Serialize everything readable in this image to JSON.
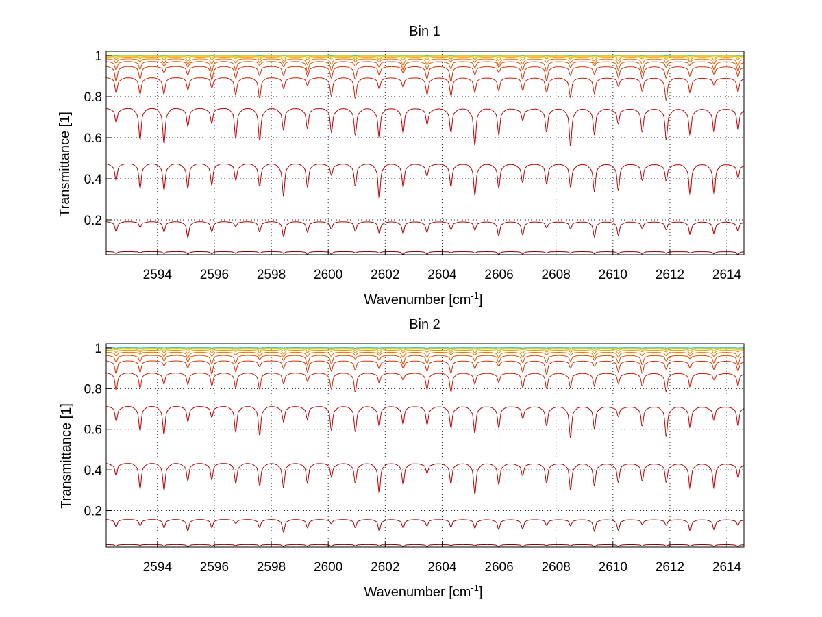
{
  "chart_data": [
    {
      "type": "line",
      "title": "Bin 1",
      "xlabel": "Wavenumber [cm",
      "xlabel_sup": "-1",
      "xlabel_end": "]",
      "ylabel": "Transmittance [1]",
      "xlim": [
        2592.2,
        2614.6
      ],
      "ylim": [
        0.03,
        1.02
      ],
      "xticks": [
        2594,
        2596,
        2598,
        2600,
        2602,
        2604,
        2606,
        2608,
        2610,
        2612,
        2614
      ],
      "xtick_labels": [
        "2594",
        "2596",
        "2598",
        "2600",
        "2602",
        "2604",
        "2606",
        "2608",
        "2610",
        "2612",
        "2614"
      ],
      "yticks": [
        0.2,
        0.4,
        0.6,
        0.8,
        1
      ],
      "ytick_labels": [
        "0.2",
        "0.4",
        "0.6",
        "0.8",
        "1"
      ],
      "grid": true,
      "line_period": 0.84,
      "series": [
        {
          "baseline": 0.045,
          "dip": 0.01,
          "color": "#8b0000"
        },
        {
          "baseline": 0.19,
          "dip": 0.05,
          "color": "#a80000"
        },
        {
          "baseline": 0.47,
          "dip": 0.11,
          "color": "#b80000"
        },
        {
          "baseline": 0.74,
          "dip": 0.12,
          "color": "#c00000"
        },
        {
          "baseline": 0.89,
          "dip": 0.07,
          "color": "#cc1a00"
        },
        {
          "baseline": 0.945,
          "dip": 0.05,
          "color": "#d83000"
        },
        {
          "baseline": 0.97,
          "dip": 0.035,
          "color": "#e05000"
        },
        {
          "baseline": 0.983,
          "dip": 0.022,
          "color": "#e87000"
        },
        {
          "baseline": 0.991,
          "dip": 0.012,
          "color": "#f09000"
        },
        {
          "baseline": 0.996,
          "dip": 0.007,
          "color": "#f5b800"
        },
        {
          "baseline": 0.999,
          "dip": 0.004,
          "color": "#e8e000"
        },
        {
          "baseline": 1.001,
          "dip": 0.002,
          "color": "#22c0d0"
        }
      ]
    },
    {
      "type": "line",
      "title": "Bin 2",
      "xlabel": "Wavenumber [cm",
      "xlabel_sup": "-1",
      "xlabel_end": "]",
      "ylabel": "Transmittance [1]",
      "xlim": [
        2592.2,
        2614.6
      ],
      "ylim": [
        0.02,
        1.02
      ],
      "xticks": [
        2594,
        2596,
        2598,
        2600,
        2602,
        2604,
        2606,
        2608,
        2610,
        2612,
        2614
      ],
      "xtick_labels": [
        "2594",
        "2596",
        "2598",
        "2600",
        "2602",
        "2604",
        "2606",
        "2608",
        "2610",
        "2612",
        "2614"
      ],
      "yticks": [
        0.2,
        0.4,
        0.6,
        0.8,
        1
      ],
      "ytick_labels": [
        "0.2",
        "0.4",
        "0.6",
        "0.8",
        "1"
      ],
      "grid": true,
      "line_period": 0.84,
      "series": [
        {
          "baseline": 0.032,
          "dip": 0.008,
          "color": "#8b0000"
        },
        {
          "baseline": 0.155,
          "dip": 0.04,
          "color": "#a80000"
        },
        {
          "baseline": 0.43,
          "dip": 0.1,
          "color": "#b80000"
        },
        {
          "baseline": 0.71,
          "dip": 0.1,
          "color": "#c00000"
        },
        {
          "baseline": 0.875,
          "dip": 0.065,
          "color": "#cc1a00"
        },
        {
          "baseline": 0.935,
          "dip": 0.045,
          "color": "#d83000"
        },
        {
          "baseline": 0.962,
          "dip": 0.032,
          "color": "#e05000"
        },
        {
          "baseline": 0.978,
          "dip": 0.02,
          "color": "#e87000"
        },
        {
          "baseline": 0.988,
          "dip": 0.012,
          "color": "#f09000"
        },
        {
          "baseline": 0.994,
          "dip": 0.007,
          "color": "#f5b800"
        },
        {
          "baseline": 0.998,
          "dip": 0.004,
          "color": "#e8e000"
        },
        {
          "baseline": 1.001,
          "dip": 0.002,
          "color": "#22c0d0"
        }
      ]
    }
  ]
}
